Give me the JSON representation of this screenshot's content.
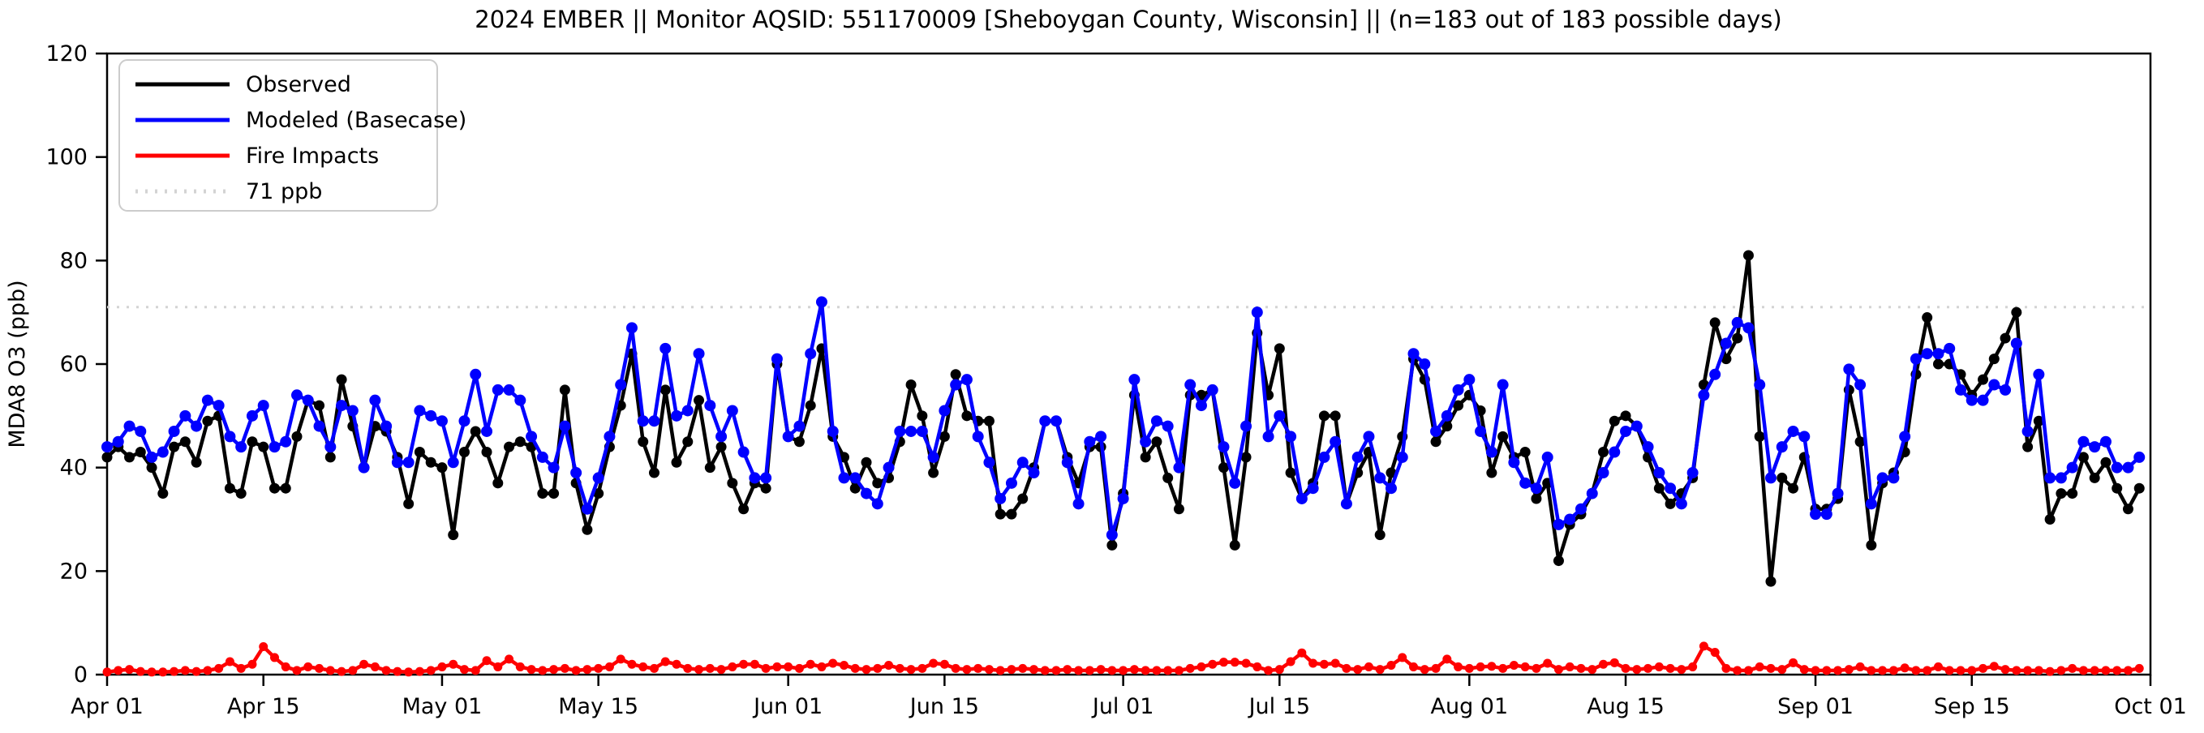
{
  "title": "2024 EMBER || Monitor AQSID: 551170009 [Sheboygan County, Wisconsin] || (n=183 out of 183 possible days)",
  "chart_data": {
    "type": "line",
    "title": "2024 EMBER || Monitor AQSID: 551170009 [Sheboygan County, Wisconsin] || (n=183 out of 183 possible days)",
    "xlabel": "",
    "ylabel": "MDA8 O3 (ppb)",
    "ylim": [
      0,
      120
    ],
    "yticks": [
      0,
      20,
      40,
      60,
      80,
      100,
      120
    ],
    "xtick_labels": [
      "Apr 01",
      "Apr 15",
      "May 01",
      "May 15",
      "Jun 01",
      "Jun 15",
      "Jul 01",
      "Jul 15",
      "Aug 01",
      "Aug 15",
      "Sep 01",
      "Sep 15",
      "Oct 01"
    ],
    "xtick_days": [
      0,
      14,
      30,
      44,
      61,
      75,
      91,
      105,
      122,
      136,
      153,
      167,
      183
    ],
    "total_days": 183,
    "grid": false,
    "legend_position": "upper left",
    "threshold": {
      "value": 71,
      "label": "71 ppb",
      "color": "#d3d3d3"
    },
    "legend": [
      "Observed",
      "Modeled (Basecase)",
      "Fire Impacts",
      "71 ppb"
    ],
    "dates": [
      "Apr 01",
      "Apr 02",
      "Apr 03",
      "Apr 04",
      "Apr 05",
      "Apr 06",
      "Apr 07",
      "Apr 08",
      "Apr 09",
      "Apr 10",
      "Apr 11",
      "Apr 12",
      "Apr 13",
      "Apr 14",
      "Apr 15",
      "Apr 16",
      "Apr 17",
      "Apr 18",
      "Apr 19",
      "Apr 20",
      "Apr 21",
      "Apr 22",
      "Apr 23",
      "Apr 24",
      "Apr 25",
      "Apr 26",
      "Apr 27",
      "Apr 28",
      "Apr 29",
      "Apr 30",
      "May 01",
      "May 02",
      "May 03",
      "May 04",
      "May 05",
      "May 06",
      "May 07",
      "May 08",
      "May 09",
      "May 10",
      "May 11",
      "May 12",
      "May 13",
      "May 14",
      "May 15",
      "May 16",
      "May 17",
      "May 18",
      "May 19",
      "May 20",
      "May 21",
      "May 22",
      "May 23",
      "May 24",
      "May 25",
      "May 26",
      "May 27",
      "May 28",
      "May 29",
      "May 30",
      "May 31",
      "Jun 01",
      "Jun 02",
      "Jun 03",
      "Jun 04",
      "Jun 05",
      "Jun 06",
      "Jun 07",
      "Jun 08",
      "Jun 09",
      "Jun 10",
      "Jun 11",
      "Jun 12",
      "Jun 13",
      "Jun 14",
      "Jun 15",
      "Jun 16",
      "Jun 17",
      "Jun 18",
      "Jun 19",
      "Jun 20",
      "Jun 21",
      "Jun 22",
      "Jun 23",
      "Jun 24",
      "Jun 25",
      "Jun 26",
      "Jun 27",
      "Jun 28",
      "Jun 29",
      "Jun 30",
      "Jul 01",
      "Jul 02",
      "Jul 03",
      "Jul 04",
      "Jul 05",
      "Jul 06",
      "Jul 07",
      "Jul 08",
      "Jul 09",
      "Jul 10",
      "Jul 11",
      "Jul 12",
      "Jul 13",
      "Jul 14",
      "Jul 15",
      "Jul 16",
      "Jul 17",
      "Jul 18",
      "Jul 19",
      "Jul 20",
      "Jul 21",
      "Jul 22",
      "Jul 23",
      "Jul 24",
      "Jul 25",
      "Jul 26",
      "Jul 27",
      "Jul 28",
      "Jul 29",
      "Jul 30",
      "Jul 31",
      "Aug 01",
      "Aug 02",
      "Aug 03",
      "Aug 04",
      "Aug 05",
      "Aug 06",
      "Aug 07",
      "Aug 08",
      "Aug 09",
      "Aug 10",
      "Aug 11",
      "Aug 12",
      "Aug 13",
      "Aug 14",
      "Aug 15",
      "Aug 16",
      "Aug 17",
      "Aug 18",
      "Aug 19",
      "Aug 20",
      "Aug 21",
      "Aug 22",
      "Aug 23",
      "Aug 24",
      "Aug 25",
      "Aug 26",
      "Aug 27",
      "Aug 28",
      "Aug 29",
      "Aug 30",
      "Aug 31",
      "Sep 01",
      "Sep 02",
      "Sep 03",
      "Sep 04",
      "Sep 05",
      "Sep 06",
      "Sep 07",
      "Sep 08",
      "Sep 09",
      "Sep 10",
      "Sep 11",
      "Sep 12",
      "Sep 13",
      "Sep 14",
      "Sep 15",
      "Sep 16",
      "Sep 17",
      "Sep 18",
      "Sep 19",
      "Sep 20",
      "Sep 21",
      "Sep 22",
      "Sep 23",
      "Sep 24",
      "Sep 25",
      "Sep 26",
      "Sep 27",
      "Sep 28",
      "Sep 29",
      "Sep 30"
    ],
    "series": [
      {
        "name": "Observed",
        "color": "#000000",
        "values": [
          42,
          44,
          42,
          43,
          40,
          35,
          44,
          45,
          41,
          49,
          50,
          36,
          35,
          45,
          44,
          36,
          36,
          46,
          53,
          52,
          42,
          57,
          48,
          40,
          48,
          47,
          42,
          33,
          43,
          41,
          40,
          27,
          43,
          47,
          43,
          37,
          44,
          45,
          44,
          35,
          35,
          55,
          37,
          28,
          35,
          44,
          52,
          62,
          45,
          39,
          55,
          41,
          45,
          53,
          40,
          44,
          37,
          32,
          37,
          36,
          60,
          46,
          45,
          52,
          63,
          46,
          42,
          36,
          41,
          37,
          38,
          45,
          56,
          50,
          39,
          46,
          58,
          50,
          49,
          49,
          31,
          31,
          34,
          40,
          49,
          49,
          42,
          37,
          44,
          44,
          25,
          35,
          54,
          42,
          45,
          38,
          32,
          54,
          54,
          55,
          40,
          25,
          42,
          66,
          54,
          63,
          39,
          34,
          37,
          50,
          50,
          33,
          39,
          43,
          27,
          39,
          46,
          61,
          57,
          45,
          48,
          52,
          54,
          51,
          39,
          46,
          42,
          43,
          34,
          37,
          22,
          29,
          31,
          35,
          43,
          49,
          50,
          48,
          42,
          36,
          33,
          35,
          38,
          56,
          68,
          61,
          65,
          81,
          46,
          18,
          38,
          36,
          42,
          32,
          32,
          34,
          55,
          45,
          25,
          37,
          39,
          43,
          58,
          69,
          60,
          60,
          58,
          54,
          57,
          61,
          65,
          70,
          44,
          49,
          30,
          35,
          35,
          42,
          38,
          41,
          36,
          32,
          36
        ]
      },
      {
        "name": "Modeled (Basecase)",
        "color": "#0000ff",
        "values": [
          44,
          45,
          48,
          47,
          42,
          43,
          47,
          50,
          48,
          53,
          52,
          46,
          44,
          50,
          52,
          44,
          45,
          54,
          53,
          48,
          44,
          52,
          51,
          40,
          53,
          48,
          41,
          41,
          51,
          50,
          49,
          41,
          49,
          58,
          47,
          55,
          55,
          53,
          46,
          42,
          40,
          48,
          39,
          32,
          38,
          46,
          56,
          67,
          49,
          49,
          63,
          50,
          51,
          62,
          52,
          46,
          51,
          43,
          38,
          38,
          61,
          46,
          48,
          62,
          72,
          47,
          38,
          38,
          35,
          33,
          40,
          47,
          47,
          47,
          42,
          51,
          56,
          57,
          46,
          41,
          34,
          37,
          41,
          39,
          49,
          49,
          41,
          33,
          45,
          46,
          27,
          34,
          57,
          45,
          49,
          48,
          40,
          56,
          52,
          55,
          44,
          37,
          48,
          70,
          46,
          50,
          46,
          34,
          36,
          42,
          45,
          33,
          42,
          46,
          38,
          36,
          42,
          62,
          60,
          47,
          50,
          55,
          57,
          47,
          43,
          56,
          41,
          37,
          36,
          42,
          29,
          30,
          32,
          35,
          39,
          43,
          47,
          48,
          44,
          39,
          36,
          33,
          39,
          54,
          58,
          64,
          68,
          67,
          56,
          38,
          44,
          47,
          46,
          31,
          31,
          35,
          59,
          56,
          33,
          38,
          38,
          46,
          61,
          62,
          62,
          63,
          55,
          53,
          53,
          56,
          55,
          64,
          47,
          58,
          38,
          38,
          40,
          45,
          44,
          45,
          40,
          40,
          42
        ]
      },
      {
        "name": "Fire Impacts",
        "color": "#ff0000",
        "values": [
          0.5,
          0.8,
          1.0,
          0.6,
          0.5,
          0.5,
          0.6,
          0.8,
          0.6,
          0.8,
          1.2,
          2.5,
          1.2,
          2.0,
          5.4,
          3.3,
          1.5,
          0.8,
          1.5,
          1.2,
          0.8,
          0.6,
          0.8,
          2.0,
          1.5,
          0.8,
          0.6,
          0.5,
          0.6,
          0.8,
          1.5,
          2.0,
          1.0,
          0.8,
          2.7,
          1.5,
          3.0,
          1.5,
          1.0,
          0.8,
          1.0,
          1.2,
          0.8,
          1.0,
          1.2,
          1.5,
          3.0,
          2.0,
          1.5,
          1.2,
          2.5,
          2.0,
          1.2,
          1.0,
          1.2,
          1.0,
          1.5,
          2.0,
          2.0,
          1.2,
          1.5,
          1.5,
          1.2,
          2.0,
          1.5,
          2.2,
          1.8,
          1.2,
          1.0,
          1.2,
          1.8,
          1.2,
          1.0,
          1.2,
          2.2,
          2.0,
          1.2,
          1.0,
          1.2,
          1.0,
          0.8,
          1.0,
          1.2,
          1.0,
          0.8,
          0.8,
          1.0,
          0.8,
          0.8,
          1.0,
          0.8,
          0.8,
          1.0,
          0.8,
          0.8,
          0.8,
          0.8,
          1.2,
          1.5,
          2.0,
          2.4,
          2.4,
          2.2,
          1.5,
          0.8,
          1.0,
          2.5,
          4.2,
          2.2,
          2.0,
          2.2,
          1.2,
          1.0,
          1.5,
          1.0,
          1.8,
          3.3,
          1.5,
          1.0,
          1.2,
          3.0,
          1.5,
          1.2,
          1.5,
          1.6,
          1.2,
          1.8,
          1.5,
          1.2,
          2.2,
          1.0,
          1.5,
          1.2,
          1.0,
          2.0,
          2.3,
          1.2,
          1.0,
          1.2,
          1.5,
          1.2,
          1.0,
          1.5,
          5.5,
          4.3,
          1.2,
          0.8,
          0.8,
          1.5,
          1.2,
          1.0,
          2.3,
          1.0,
          0.8,
          0.8,
          0.8,
          1.0,
          1.5,
          0.8,
          0.8,
          0.8,
          1.3,
          0.8,
          0.8,
          1.5,
          0.8,
          0.8,
          0.8,
          1.2,
          1.6,
          1.0,
          0.8,
          0.8,
          0.8,
          0.6,
          0.8,
          1.2,
          0.8,
          0.8,
          0.8,
          0.8,
          0.8,
          1.2
        ]
      }
    ]
  }
}
